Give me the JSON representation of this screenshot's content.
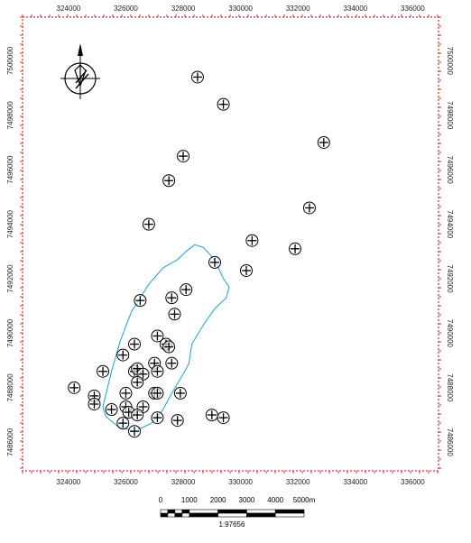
{
  "map": {
    "x_ticks": [
      "324000",
      "326000",
      "328000",
      "330000",
      "332000",
      "334000",
      "336000"
    ],
    "y_ticks": [
      "7486000",
      "7488000",
      "7490000",
      "7492000",
      "7494000",
      "7496000",
      "7498000",
      "7500000"
    ],
    "extent": {
      "xmin": 322400,
      "xmax": 336900,
      "ymin": 7484950,
      "ymax": 7501600
    },
    "north_arrow": {
      "icon": "north-arrow-icon"
    },
    "frame_color": "#cc0000",
    "boundary_color": "#1a9fd6",
    "boundary": [
      [
        325200,
        7487300
      ],
      [
        325500,
        7488600
      ],
      [
        325800,
        7489700
      ],
      [
        326200,
        7490800
      ],
      [
        326800,
        7491800
      ],
      [
        327300,
        7492400
      ],
      [
        327800,
        7492700
      ],
      [
        328100,
        7493000
      ],
      [
        328400,
        7493250
      ],
      [
        328700,
        7493150
      ],
      [
        329100,
        7492700
      ],
      [
        329400,
        7492000
      ],
      [
        329600,
        7491700
      ],
      [
        329500,
        7491300
      ],
      [
        329100,
        7490900
      ],
      [
        328700,
        7490300
      ],
      [
        328300,
        7489600
      ],
      [
        328200,
        7488900
      ],
      [
        328000,
        7488500
      ],
      [
        327600,
        7487800
      ],
      [
        327300,
        7487200
      ],
      [
        326900,
        7486700
      ],
      [
        326300,
        7486400
      ],
      [
        325700,
        7486600
      ],
      [
        325300,
        7486950
      ],
      [
        325200,
        7487300
      ]
    ],
    "points": [
      [
        328500,
        7499400
      ],
      [
        329400,
        7498400
      ],
      [
        332900,
        7497000
      ],
      [
        328000,
        7496500
      ],
      [
        327500,
        7495600
      ],
      [
        332400,
        7494600
      ],
      [
        326800,
        7494000
      ],
      [
        330400,
        7493400
      ],
      [
        331900,
        7493100
      ],
      [
        329100,
        7492600
      ],
      [
        330200,
        7492300
      ],
      [
        328100,
        7491600
      ],
      [
        327600,
        7491300
      ],
      [
        326500,
        7491200
      ],
      [
        327700,
        7490700
      ],
      [
        327100,
        7489900
      ],
      [
        326300,
        7489600
      ],
      [
        327400,
        7489600
      ],
      [
        327500,
        7489500
      ],
      [
        325900,
        7489200
      ],
      [
        327000,
        7488900
      ],
      [
        327600,
        7488900
      ],
      [
        326300,
        7488600
      ],
      [
        326400,
        7488700
      ],
      [
        326600,
        7488500
      ],
      [
        327100,
        7488600
      ],
      [
        325200,
        7488600
      ],
      [
        326400,
        7488200
      ],
      [
        324200,
        7488000
      ],
      [
        326000,
        7487800
      ],
      [
        327000,
        7487800
      ],
      [
        327100,
        7487800
      ],
      [
        327900,
        7487800
      ],
      [
        324900,
        7487700
      ],
      [
        324900,
        7487400
      ],
      [
        326000,
        7487300
      ],
      [
        326600,
        7487300
      ],
      [
        325500,
        7487200
      ],
      [
        326100,
        7487100
      ],
      [
        326400,
        7487000
      ],
      [
        327100,
        7486900
      ],
      [
        327800,
        7486800
      ],
      [
        329000,
        7487000
      ],
      [
        329400,
        7486900
      ],
      [
        325900,
        7486700
      ],
      [
        326300,
        7486400
      ]
    ]
  },
  "scale_bar": {
    "labels": [
      "0",
      "1000",
      "2000",
      "3000",
      "4000",
      "5000m"
    ],
    "ratio": "1:97656"
  }
}
